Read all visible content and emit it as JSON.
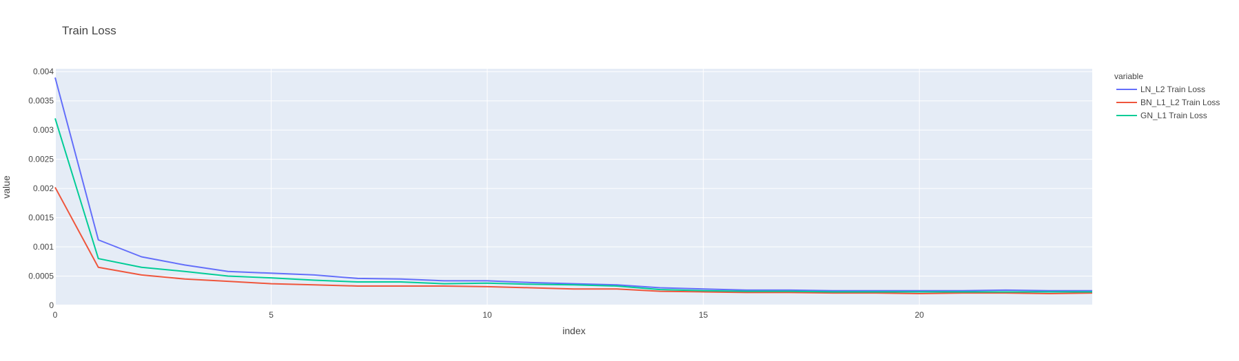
{
  "chart_data": {
    "type": "line",
    "title": "Train Loss",
    "xlabel": "index",
    "ylabel": "value",
    "legend_title": "variable",
    "legend_position": "right",
    "grid": true,
    "xlim": [
      0,
      24
    ],
    "ylim": [
      0,
      0.00405
    ],
    "x_ticks": [
      0,
      5,
      10,
      15,
      20
    ],
    "x_tick_labels": [
      "0",
      "5",
      "10",
      "15",
      "20"
    ],
    "y_ticks": [
      0,
      0.0005,
      0.001,
      0.0015,
      0.002,
      0.0025,
      0.003,
      0.0035,
      0.004
    ],
    "y_tick_labels": [
      "0",
      "0.0005",
      "0.001",
      "0.0015",
      "0.002",
      "0.0025",
      "0.003",
      "0.0035",
      "0.004"
    ],
    "colors": {
      "plot_background": "#E5ECF6",
      "grid": "#ffffff",
      "text": "#444444"
    },
    "x": [
      0,
      1,
      2,
      3,
      4,
      5,
      6,
      7,
      8,
      9,
      10,
      11,
      12,
      13,
      14,
      15,
      16,
      17,
      18,
      19,
      20,
      21,
      22,
      23,
      24
    ],
    "series": [
      {
        "name": "LN_L2 Train Loss",
        "color": "#636EFA",
        "values": [
          0.0039,
          0.00112,
          0.00083,
          0.00069,
          0.00058,
          0.00055,
          0.00052,
          0.00046,
          0.00045,
          0.00042,
          0.00042,
          0.00039,
          0.00037,
          0.00035,
          0.0003,
          0.00028,
          0.00026,
          0.00026,
          0.00025,
          0.00025,
          0.00025,
          0.00025,
          0.00026,
          0.00025,
          0.00025
        ]
      },
      {
        "name": "BN_L1_L2 Train Loss",
        "color": "#EF553B",
        "values": [
          0.00202,
          0.00065,
          0.00052,
          0.00045,
          0.00041,
          0.00037,
          0.00035,
          0.00033,
          0.00033,
          0.00033,
          0.00032,
          0.0003,
          0.00028,
          0.00028,
          0.00024,
          0.00023,
          0.00022,
          0.00022,
          0.00021,
          0.00021,
          0.0002,
          0.00021,
          0.00021,
          0.0002,
          0.00021
        ]
      },
      {
        "name": "GN_L1 Train Loss",
        "color": "#00CC96",
        "values": [
          0.0032,
          0.0008,
          0.00065,
          0.00058,
          0.0005,
          0.00047,
          0.00043,
          0.0004,
          0.0004,
          0.00037,
          0.00038,
          0.00036,
          0.00035,
          0.00033,
          0.00027,
          0.00025,
          0.00024,
          0.00024,
          0.00023,
          0.00023,
          0.00023,
          0.00023,
          0.00023,
          0.00023,
          0.00023
        ]
      }
    ]
  }
}
